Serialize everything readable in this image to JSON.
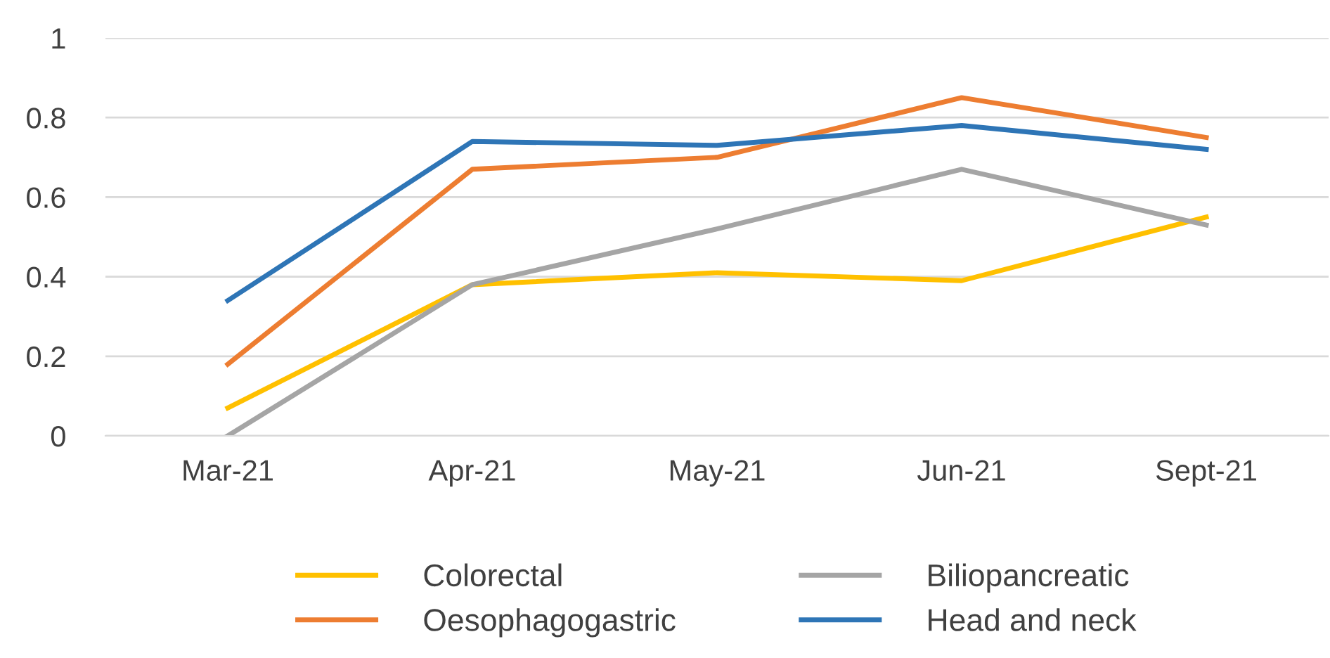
{
  "chart_data": {
    "type": "line",
    "categories": [
      "Mar-21",
      "Apr-21",
      "May-21",
      "Jun-21",
      "Sept-21"
    ],
    "series": [
      {
        "name": "Colorectal",
        "color": "#ffc000",
        "values": [
          0.07,
          0.38,
          0.41,
          0.39,
          0.55
        ]
      },
      {
        "name": "Oesophagogastric",
        "color": "#ed7d31",
        "values": [
          0.18,
          0.67,
          0.7,
          0.85,
          0.75
        ]
      },
      {
        "name": "Biliopancreatic",
        "color": "#a5a5a5",
        "values": [
          0.0,
          0.38,
          0.52,
          0.67,
          0.53
        ]
      },
      {
        "name": "Head and neck",
        "color": "#2e75b6",
        "values": [
          0.34,
          0.74,
          0.73,
          0.78,
          0.72
        ]
      }
    ],
    "ylim": [
      0,
      1
    ],
    "yticks": [
      0,
      0.2,
      0.4,
      0.6,
      0.8,
      1
    ],
    "grid": "y",
    "legend": "bottom",
    "marker": "none",
    "line_style": "solid"
  }
}
